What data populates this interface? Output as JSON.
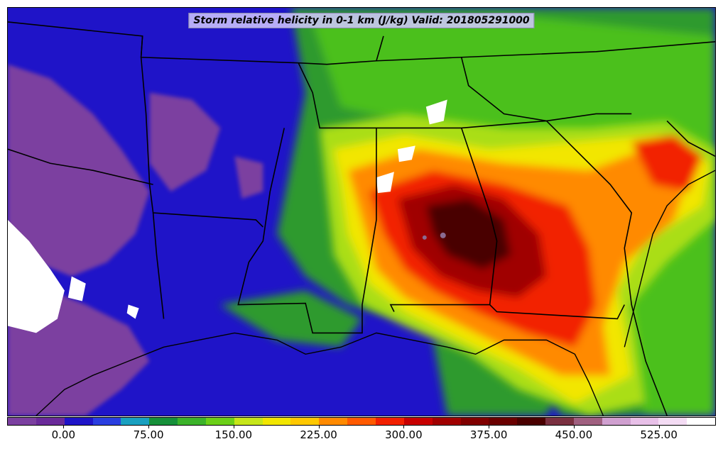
{
  "map": {
    "title": "Storm relative helicity in 0-1 km (J/kg) Valid: 201805291000",
    "field": "storm-relative-helicity",
    "palette": {
      "purple": "#7b3fa0",
      "blue": "#1f14c8",
      "midblue": "#2a5fd0",
      "green": "#2e9a2e",
      "lime": "#4cc01a",
      "yellowgreen": "#aade14",
      "yellow": "#f2e600",
      "orange": "#ff8a00",
      "red": "#f22000",
      "darkred": "#a00000",
      "maroon": "#4a0000",
      "white": "#ffffff",
      "border": "#000000"
    }
  },
  "colorbar": {
    "colors": [
      "#7b3fa0",
      "#6a2a9a",
      "#1f14c8",
      "#2a3ee0",
      "#1aa0c0",
      "#16903a",
      "#3cb32a",
      "#6cd018",
      "#c6e61a",
      "#f2e600",
      "#ffc800",
      "#ff8a00",
      "#ff5a00",
      "#f22000",
      "#c80000",
      "#a00000",
      "#800000",
      "#6a0000",
      "#4a0000",
      "#7a3040",
      "#a06080",
      "#d0a0d0",
      "#e8c0e8",
      "#f4dcf4",
      "#ffffff"
    ],
    "ticks": [
      "0.00",
      "75.00",
      "150.00",
      "225.00",
      "300.00",
      "375.00",
      "450.00",
      "525.00"
    ],
    "tick_positions_fraction": [
      0.0795,
      0.1995,
      0.3195,
      0.4395,
      0.5595,
      0.6795,
      0.7995,
      0.9195
    ]
  }
}
